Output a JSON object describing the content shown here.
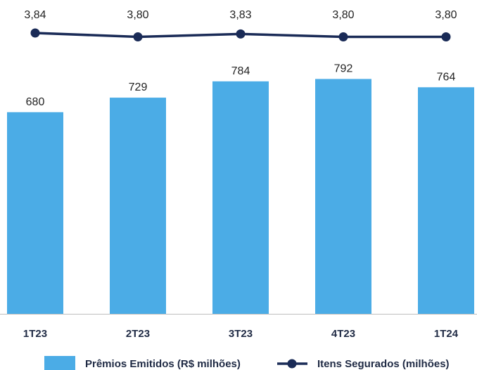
{
  "colors": {
    "bar": "#4BACE6",
    "line": "#1A2B57",
    "baseline": "#BFBFBF",
    "text": "#222222",
    "legend_text": "#1F2A44"
  },
  "chart_data": {
    "type": "bar",
    "categories": [
      "1T23",
      "2T23",
      "3T23",
      "4T23",
      "1T24"
    ],
    "series": [
      {
        "name": "Prêmios Emitidos (R$ milhões)",
        "type": "bar",
        "values": [
          680,
          729,
          784,
          792,
          764
        ],
        "labels": [
          "680",
          "729",
          "784",
          "792",
          "764"
        ]
      },
      {
        "name": "Itens Segurados (milhões)",
        "type": "line",
        "values": [
          3.84,
          3.8,
          3.83,
          3.8,
          3.8
        ],
        "labels": [
          "3,84",
          "3,80",
          "3,83",
          "3,80",
          "3,80"
        ]
      }
    ],
    "title": "",
    "xlabel": "",
    "ylabel": "",
    "grid": false,
    "legend_position": "bottom"
  }
}
